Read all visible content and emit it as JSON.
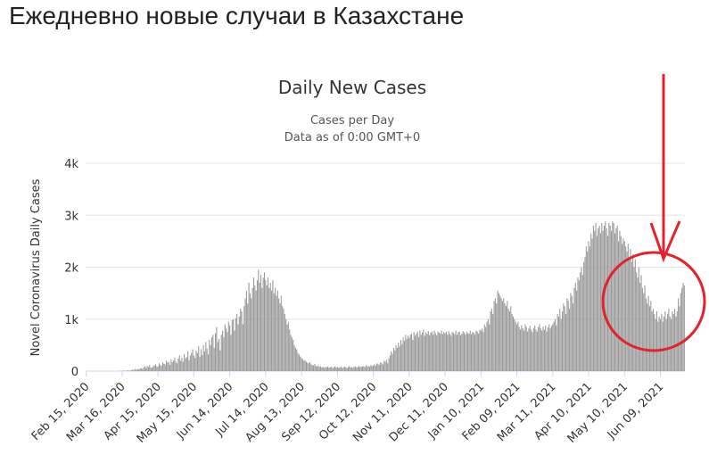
{
  "page_title": "Ежедневно новые случаи в Казахстане",
  "chart_data": {
    "type": "bar",
    "title": "Daily New Cases",
    "subtitle": [
      "Cases per Day",
      "Data as of 0:00 GMT+0"
    ],
    "y_label": "Novel Coronavirus Daily Cases",
    "color": "#999999",
    "grid": true,
    "ylim": [
      0,
      4000
    ],
    "yticks": [
      0,
      {
        "value": 1000,
        "label": "1k"
      },
      {
        "value": 2000,
        "label": "2k"
      },
      {
        "value": 3000,
        "label": "3k"
      },
      {
        "value": 4000,
        "label": "4k"
      }
    ],
    "categories": [
      "Feb 15, 2020",
      null,
      null,
      null,
      null,
      null,
      null,
      null,
      null,
      null,
      null,
      null,
      null,
      null,
      null,
      null,
      null,
      null,
      null,
      null,
      null,
      null,
      null,
      null,
      null,
      null,
      null,
      null,
      null,
      null,
      "Mar 16, 2020",
      null,
      null,
      null,
      null,
      null,
      null,
      null,
      null,
      null,
      null,
      null,
      null,
      null,
      null,
      null,
      null,
      null,
      null,
      null,
      null,
      null,
      null,
      null,
      null,
      null,
      null,
      null,
      null,
      null,
      "Apr 15, 2020",
      null,
      null,
      null,
      null,
      null,
      null,
      null,
      null,
      null,
      null,
      null,
      null,
      null,
      null,
      null,
      null,
      null,
      null,
      null,
      null,
      null,
      null,
      null,
      null,
      null,
      null,
      null,
      null,
      null,
      "May 15, 2020",
      null,
      null,
      null,
      null,
      null,
      null,
      null,
      null,
      null,
      null,
      null,
      null,
      null,
      null,
      null,
      null,
      null,
      null,
      null,
      null,
      null,
      null,
      null,
      null,
      null,
      null,
      null,
      null,
      null,
      "Jun 14, 2020",
      null,
      null,
      null,
      null,
      null,
      null,
      null,
      null,
      null,
      null,
      null,
      null,
      null,
      null,
      null,
      null,
      null,
      null,
      null,
      null,
      null,
      null,
      null,
      null,
      null,
      null,
      null,
      null,
      null,
      "Jul 14, 2020",
      null,
      null,
      null,
      null,
      null,
      null,
      null,
      null,
      null,
      null,
      null,
      null,
      null,
      null,
      null,
      null,
      null,
      null,
      null,
      null,
      null,
      null,
      null,
      null,
      null,
      null,
      null,
      null,
      null,
      "Aug 13, 2020",
      null,
      null,
      null,
      null,
      null,
      null,
      null,
      null,
      null,
      null,
      null,
      null,
      null,
      null,
      null,
      null,
      null,
      null,
      null,
      null,
      null,
      null,
      null,
      null,
      null,
      null,
      null,
      null,
      null,
      "Sep 12, 2020",
      null,
      null,
      null,
      null,
      null,
      null,
      null,
      null,
      null,
      null,
      null,
      null,
      null,
      null,
      null,
      null,
      null,
      null,
      null,
      null,
      null,
      null,
      null,
      null,
      null,
      null,
      null,
      null,
      null,
      "Oct 12, 2020",
      null,
      null,
      null,
      null,
      null,
      null,
      null,
      null,
      null,
      null,
      null,
      null,
      null,
      null,
      null,
      null,
      null,
      null,
      null,
      null,
      null,
      null,
      null,
      null,
      null,
      null,
      null,
      null,
      null,
      "Nov 11, 2020",
      null,
      null,
      null,
      null,
      null,
      null,
      null,
      null,
      null,
      null,
      null,
      null,
      null,
      null,
      null,
      null,
      null,
      null,
      null,
      null,
      null,
      null,
      null,
      null,
      null,
      null,
      null,
      null,
      null,
      "Dec 11, 2020",
      null,
      null,
      null,
      null,
      null,
      null,
      null,
      null,
      null,
      null,
      null,
      null,
      null,
      null,
      null,
      null,
      null,
      null,
      null,
      null,
      null,
      null,
      null,
      null,
      null,
      null,
      null,
      null,
      null,
      "Jan 10, 2021",
      null,
      null,
      null,
      null,
      null,
      null,
      null,
      null,
      null,
      null,
      null,
      null,
      null,
      null,
      null,
      null,
      null,
      null,
      null,
      null,
      null,
      null,
      null,
      null,
      null,
      null,
      null,
      null,
      null,
      "Feb 09, 2021",
      null,
      null,
      null,
      null,
      null,
      null,
      null,
      null,
      null,
      null,
      null,
      null,
      null,
      null,
      null,
      null,
      null,
      null,
      null,
      null,
      null,
      null,
      null,
      null,
      null,
      null,
      null,
      null,
      null,
      "Mar 11, 2021",
      null,
      null,
      null,
      null,
      null,
      null,
      null,
      null,
      null,
      null,
      null,
      null,
      null,
      null,
      null,
      null,
      null,
      null,
      null,
      null,
      null,
      null,
      null,
      null,
      null,
      null,
      null,
      null,
      null,
      "Apr 10, 2021",
      null,
      null,
      null,
      null,
      null,
      null,
      null,
      null,
      null,
      null,
      null,
      null,
      null,
      null,
      null,
      null,
      null,
      null,
      null,
      null,
      null,
      null,
      null,
      null,
      null,
      null,
      null,
      null,
      null,
      "May 10, 2021",
      null,
      null,
      null,
      null,
      null,
      null,
      null,
      null,
      null,
      null,
      null,
      null,
      null,
      null,
      null,
      null,
      null,
      null,
      null,
      null,
      null,
      null,
      null,
      null,
      null,
      null,
      null,
      null,
      null,
      "Jun 09, 2021",
      null,
      null,
      null,
      null,
      null,
      null,
      null,
      null,
      null,
      null,
      null,
      null,
      null,
      null,
      null,
      null,
      null,
      null,
      null,
      null
    ],
    "values": [
      0,
      0,
      0,
      0,
      0,
      0,
      0,
      0,
      0,
      0,
      0,
      0,
      0,
      0,
      0,
      0,
      0,
      0,
      0,
      0,
      0,
      0,
      0,
      0,
      0,
      0,
      0,
      2,
      4,
      3,
      4,
      6,
      8,
      3,
      10,
      13,
      8,
      12,
      20,
      30,
      15,
      45,
      25,
      40,
      35,
      50,
      55,
      40,
      70,
      90,
      60,
      100,
      80,
      120,
      70,
      65,
      95,
      110,
      130,
      85,
      90,
      150,
      120,
      100,
      170,
      140,
      130,
      200,
      160,
      180,
      120,
      230,
      170,
      210,
      260,
      180,
      150,
      240,
      300,
      200,
      260,
      180,
      330,
      250,
      270,
      380,
      210,
      300,
      350,
      420,
      300,
      250,
      400,
      350,
      480,
      270,
      420,
      310,
      500,
      380,
      560,
      430,
      320,
      600,
      500,
      650,
      700,
      450,
      730,
      850,
      560,
      620,
      400,
      700,
      780,
      650,
      900,
      820,
      750,
      950,
      880,
      700,
      980,
      1000,
      780,
      1020,
      1100,
      900,
      1050,
      1200,
      1150,
      900,
      1250,
      1400,
      1550,
      1300,
      1700,
      1500,
      1400,
      1600,
      1800,
      1650,
      1550,
      1750,
      1950,
      1700,
      1850,
      1600,
      1800,
      1900,
      1750,
      1650,
      1800,
      1600,
      1700,
      1550,
      1750,
      1500,
      1600,
      1450,
      1550,
      1400,
      1300,
      1450,
      1250,
      1200,
      1100,
      1000,
      900,
      950,
      800,
      700,
      650,
      600,
      500,
      450,
      420,
      350,
      320,
      280,
      250,
      230,
      200,
      210,
      180,
      160,
      150,
      170,
      130,
      120,
      110,
      140,
      100,
      90,
      110,
      80,
      95,
      70,
      85,
      60,
      80,
      75,
      90,
      65,
      70,
      85,
      60,
      75,
      90,
      70,
      80,
      65,
      70,
      90,
      60,
      75,
      85,
      70,
      60,
      80,
      95,
      70,
      75,
      65,
      85,
      90,
      70,
      80,
      100,
      75,
      90,
      85,
      95,
      80,
      110,
      90,
      100,
      85,
      120,
      95,
      110,
      130,
      100,
      150,
      140,
      120,
      170,
      160,
      130,
      200,
      180,
      220,
      150,
      250,
      300,
      380,
      330,
      450,
      400,
      500,
      450,
      550,
      480,
      600,
      520,
      650,
      580,
      700,
      620,
      680,
      640,
      700,
      720,
      600,
      750,
      680,
      720,
      760,
      650,
      780,
      700,
      740,
      800,
      680,
      750,
      720,
      770,
      690,
      740,
      760,
      700,
      780,
      730,
      690,
      760,
      740,
      720,
      780,
      710,
      750,
      730,
      760,
      700,
      770,
      720,
      680,
      750,
      740,
      710,
      780,
      700,
      750,
      760,
      690,
      720,
      770,
      740,
      700,
      760,
      730,
      720,
      780,
      710,
      750,
      740,
      700,
      780,
      760,
      720,
      800,
      780,
      820,
      750,
      900,
      850,
      950,
      1000,
      900,
      1150,
      1200,
      1100,
      1350,
      1400,
      1300,
      1550,
      1500,
      1450,
      1400,
      1350,
      1400,
      1300,
      1250,
      1350,
      1200,
      1150,
      1250,
      1100,
      1050,
      1000,
      950,
      900,
      950,
      850,
      800,
      880,
      820,
      780,
      900,
      850,
      760,
      820,
      870,
      800,
      750,
      830,
      880,
      800,
      760,
      850,
      900,
      820,
      780,
      860,
      800,
      880,
      760,
      840,
      900,
      820,
      870,
      900,
      950,
      1000,
      880,
      1100,
      1050,
      1200,
      1000,
      1150,
      1300,
      1250,
      1100,
      1400,
      1350,
      1200,
      1500,
      1450,
      1300,
      1600,
      1700,
      1550,
      1800,
      1750,
      1900,
      2000,
      1850,
      2100,
      2200,
      2400,
      2300,
      2500,
      2400,
      2650,
      2550,
      2800,
      2700,
      2850,
      2600,
      2750,
      2800,
      2650,
      2850,
      2700,
      2800,
      2880,
      2750,
      2600,
      2850,
      2800,
      2700,
      2880,
      2850,
      2650,
      2750,
      2800,
      2500,
      2700,
      2600,
      2450,
      2550,
      2500,
      2400,
      2300,
      2450,
      2200,
      2350,
      2100,
      2250,
      2000,
      2150,
      1900,
      1800,
      2000,
      1700,
      1850,
      1600,
      1500,
      1650,
      1400,
      1300,
      1450,
      1250,
      1350,
      1150,
      1200,
      1100,
      1000,
      1150,
      950,
      1050,
      1000,
      1100,
      950,
      1050,
      1150,
      1000,
      1100,
      1200,
      1050,
      1000,
      1150,
      1100,
      1200,
      1050,
      1150,
      1400,
      1250,
      1500,
      1600,
      1700,
      1650
    ]
  }
}
